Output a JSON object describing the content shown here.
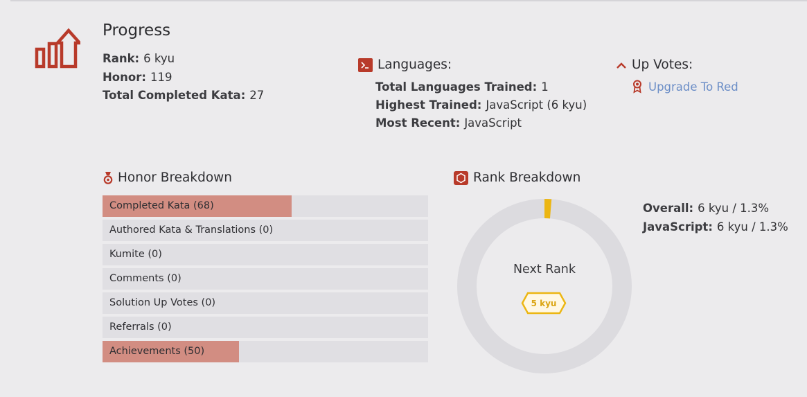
{
  "progress": {
    "title": "Progress",
    "rank_label": "Rank:",
    "rank_value": "6 kyu",
    "honor_label": "Honor:",
    "honor_value": "119",
    "completed_label": "Total Completed Kata:",
    "completed_value": "27",
    "icon": "progress-chart-icon"
  },
  "languages": {
    "title": "Languages:",
    "icon": "terminal-icon",
    "trained_label": "Total Languages Trained:",
    "trained_value": "1",
    "highest_label": "Highest Trained:",
    "highest_value": "JavaScript (6 kyu)",
    "recent_label": "Most Recent:",
    "recent_value": "JavaScript"
  },
  "upvotes": {
    "title": "Up Votes:",
    "icon": "chevron-up-icon",
    "link_icon": "ribbon-icon",
    "link_label": "Upgrade To Red"
  },
  "honor_breakdown": {
    "title": "Honor Breakdown",
    "icon": "medal-icon",
    "items": [
      {
        "label": "Completed Kata (68)",
        "fill": 0.58
      },
      {
        "label": "Authored Kata & Translations (0)",
        "fill": 0
      },
      {
        "label": "Kumite (0)",
        "fill": 0
      },
      {
        "label": "Comments (0)",
        "fill": 0
      },
      {
        "label": "Solution Up Votes (0)",
        "fill": 0
      },
      {
        "label": "Referrals (0)",
        "fill": 0
      },
      {
        "label": "Achievements (50)",
        "fill": 0.42
      }
    ]
  },
  "rank_breakdown": {
    "title": "Rank Breakdown",
    "icon": "hexagon-icon",
    "overall_label": "Overall:",
    "overall_value": "6 kyu / 1.3%",
    "js_label": "JavaScript:",
    "js_value": "6 kyu / 1.3%",
    "next_rank_label": "Next Rank",
    "next_rank_badge": "5 kyu",
    "progress_pct": 1.3,
    "colors": {
      "track": "#dcdbdf",
      "progress": "#ecb613",
      "accent": "#b83a2a",
      "link": "#6c8ec7",
      "bar_fill": "#d28d82"
    }
  }
}
